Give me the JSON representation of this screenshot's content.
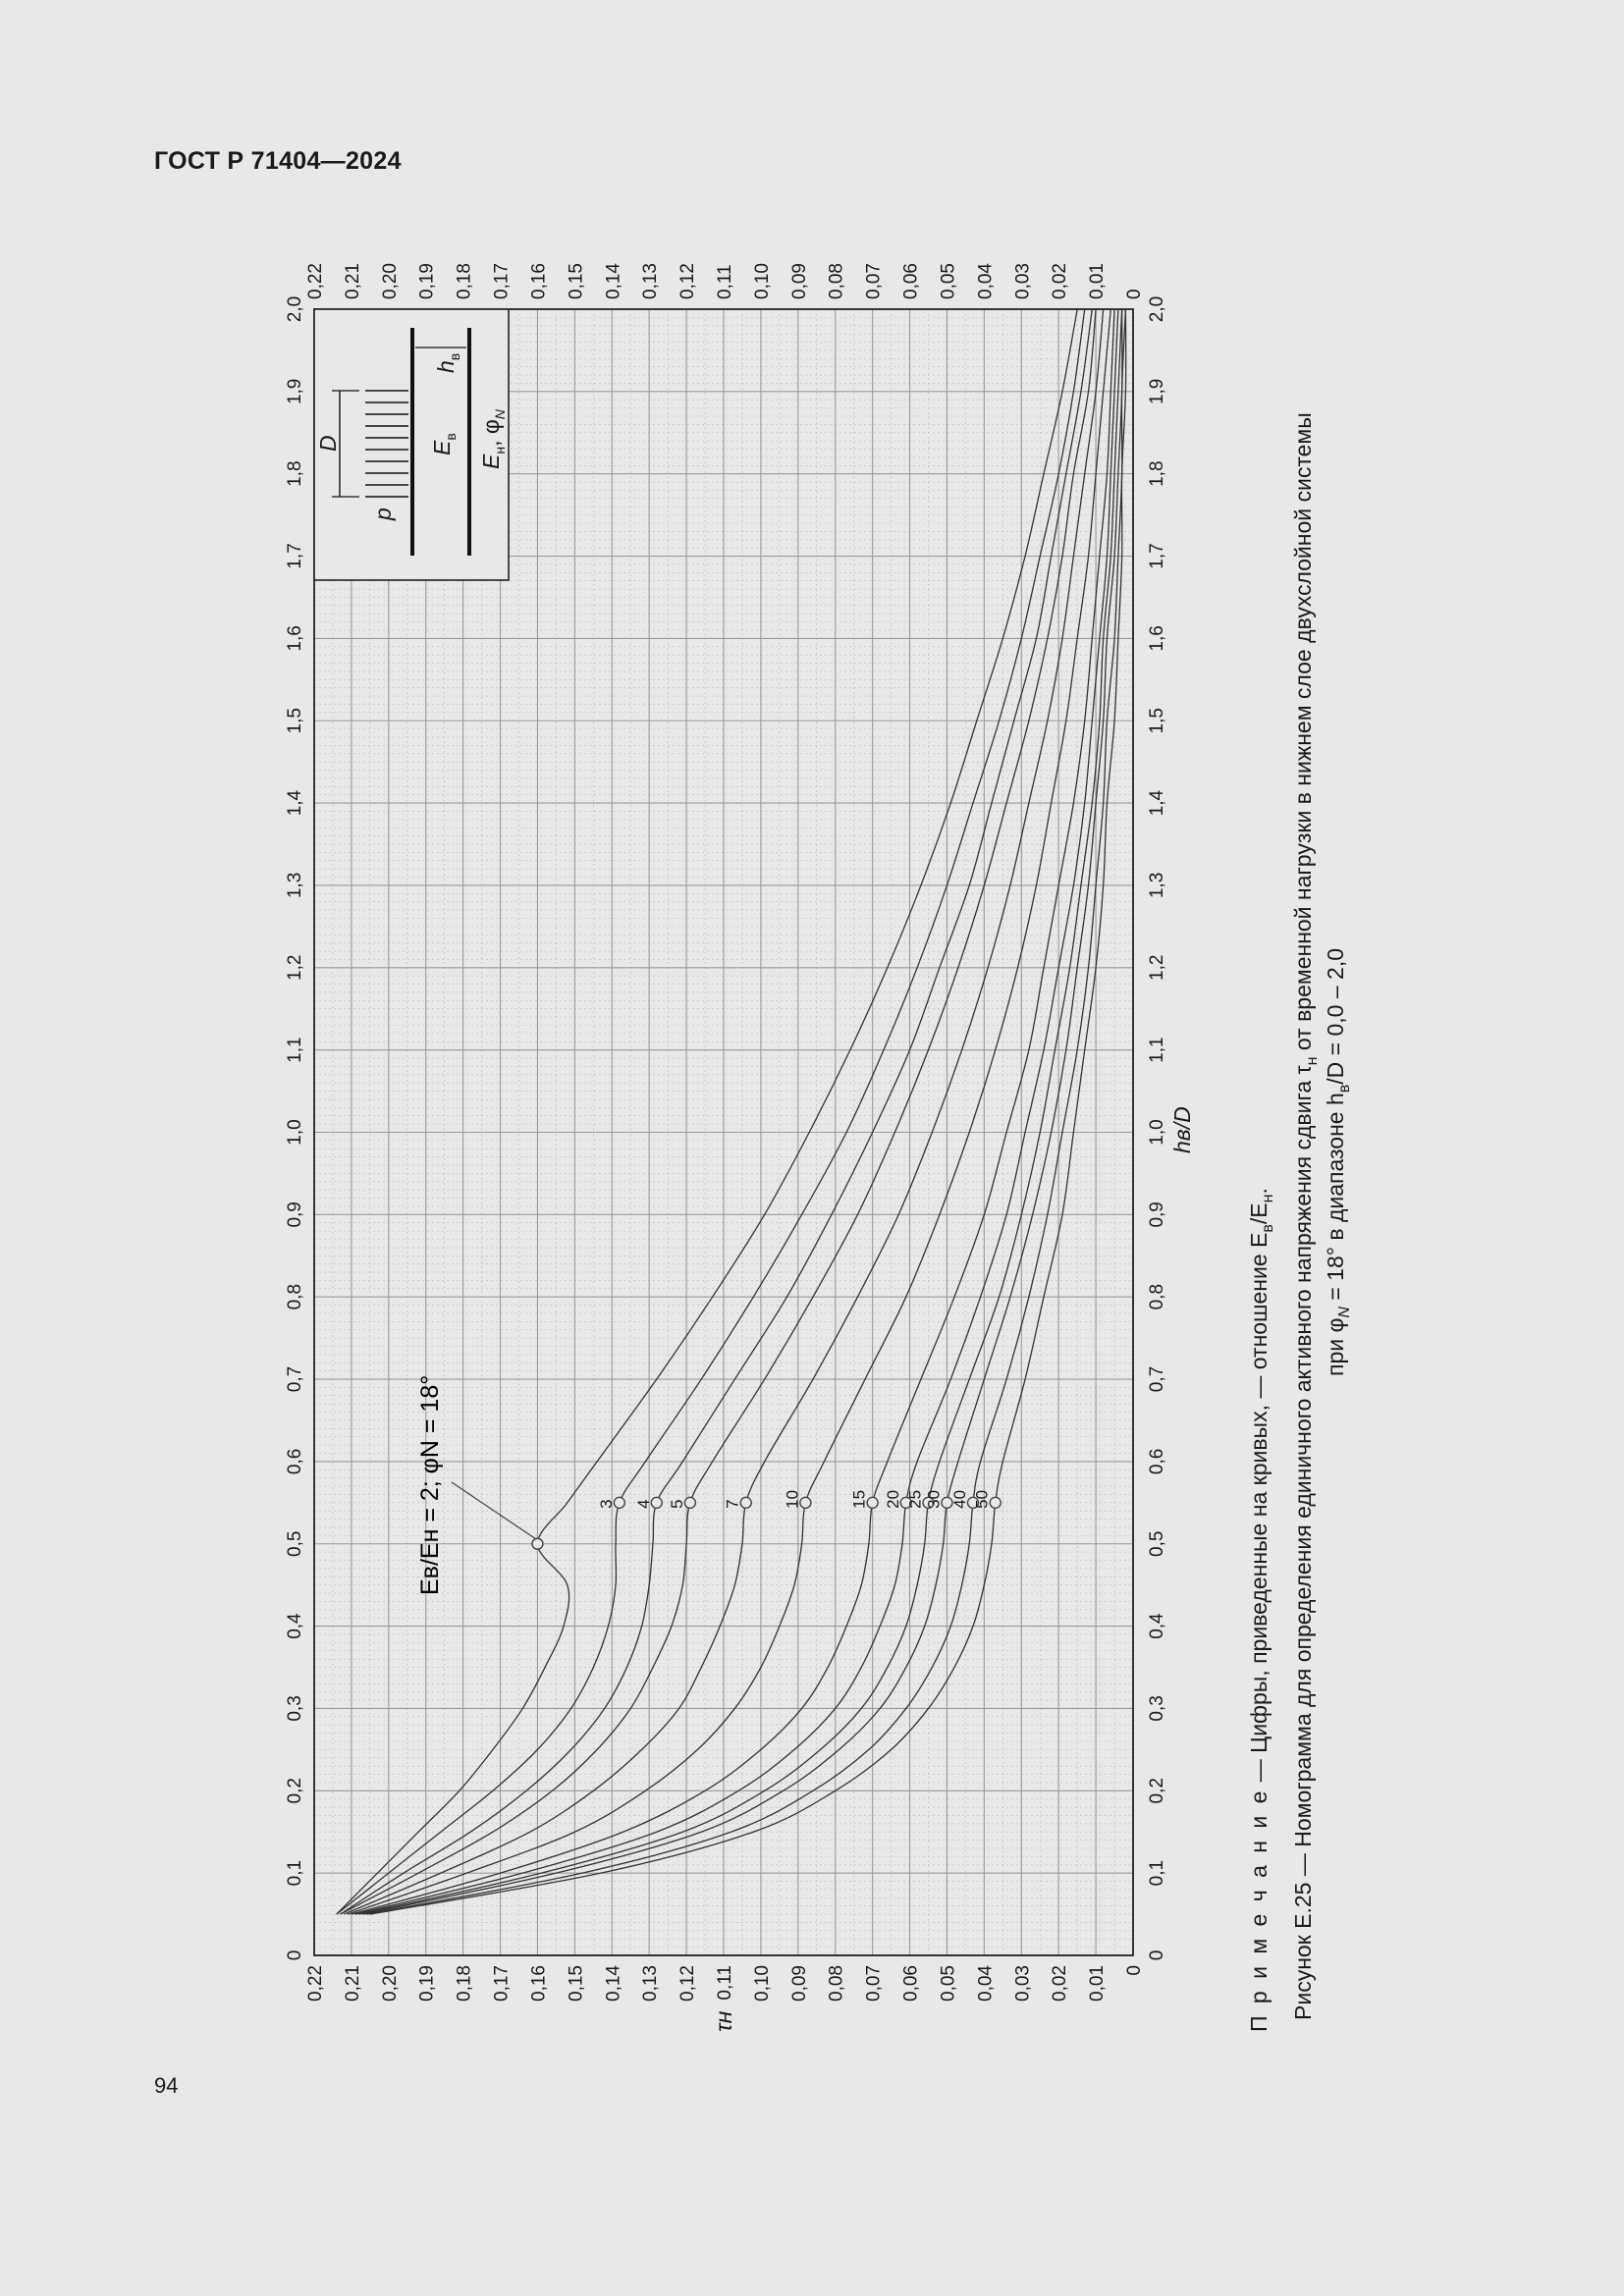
{
  "header": {
    "title": "ГОСТ Р 71404—2024"
  },
  "page_number": "94",
  "note": {
    "label": "П р и м е ч а н и е",
    "text": " — Цифры, приведенные на кривых, — отношение E",
    "sub1": "в",
    "mid": "/E",
    "sub2": "н",
    "end": "."
  },
  "caption": {
    "line1_a": "Рисунок Е.25 — Номограмма для определения единичного активного напряжения сдвига τ",
    "line1_sub": "н",
    "line1_b": " от временной нагрузки в нижнем слое двухслойной системы",
    "line2_a": "при φ",
    "line2_sub": "N",
    "line2_b": " = 18° в диапазоне h",
    "line2_sub2": "в",
    "line2_c": "/D = 0,0 – 2,0"
  },
  "inset": {
    "p": "p",
    "D": "D",
    "h": "h",
    "h_sub": "в",
    "Ev": "E",
    "Ev_sub": "в",
    "En": "E",
    "En_sub": "н",
    "phi": ", φ",
    "phi_sub": "N"
  },
  "chart_data": {
    "type": "line",
    "title": "",
    "xlabel": "hв/D",
    "ylabel": "τн",
    "xlim": [
      0,
      2.0
    ],
    "ylim": [
      0,
      0.22
    ],
    "x_ticks": [
      "0",
      "0,1",
      "0,2",
      "0,3",
      "0,4",
      "0,5",
      "0,6",
      "0,7",
      "0,8",
      "0,9",
      "1,0",
      "1,1",
      "1,2",
      "1,3",
      "1,4",
      "1,5",
      "1,6",
      "1,7",
      "1,8",
      "1,9",
      "2,0"
    ],
    "y_ticks": [
      "0",
      "0,01",
      "0,02",
      "0,03",
      "0,04",
      "0,05",
      "0,06",
      "0,07",
      "0,08",
      "0,09",
      "0,10",
      "0,11",
      "0,12",
      "0,13",
      "0,14",
      "0,15",
      "0,16",
      "0,17",
      "0,18",
      "0,19",
      "0,20",
      "0,21",
      "0,22"
    ],
    "grid": true,
    "annotation": "Eв/Eн = 2; φN = 18°",
    "x": [
      0.05,
      0.1,
      0.15,
      0.2,
      0.25,
      0.3,
      0.35,
      0.4,
      0.45,
      0.5,
      0.55,
      0.6,
      0.7,
      0.8,
      0.9,
      1.0,
      1.1,
      1.2,
      1.3,
      1.4,
      1.5,
      1.6,
      1.7,
      1.8,
      1.9,
      2.0
    ],
    "series": [
      {
        "name": "2",
        "label_x": 0.5,
        "values": [
          0.214,
          0.203,
          0.192,
          0.181,
          0.172,
          0.164,
          0.158,
          0.153,
          0.152,
          0.16,
          0.152,
          0.144,
          0.128,
          0.113,
          0.099,
          0.087,
          0.076,
          0.066,
          0.057,
          0.049,
          0.042,
          0.035,
          0.029,
          0.024,
          0.019,
          0.015
        ]
      },
      {
        "name": "3",
        "label_x": 0.55,
        "values": [
          0.214,
          0.2,
          0.186,
          0.172,
          0.16,
          0.151,
          0.145,
          0.141,
          0.139,
          0.139,
          0.138,
          0.131,
          0.116,
          0.102,
          0.089,
          0.077,
          0.067,
          0.058,
          0.05,
          0.043,
          0.036,
          0.03,
          0.025,
          0.02,
          0.016,
          0.013
        ]
      },
      {
        "name": "4",
        "label_x": 0.55,
        "values": [
          0.213,
          0.196,
          0.178,
          0.163,
          0.151,
          0.142,
          0.136,
          0.132,
          0.13,
          0.129,
          0.128,
          0.121,
          0.107,
          0.093,
          0.081,
          0.07,
          0.06,
          0.052,
          0.044,
          0.038,
          0.032,
          0.026,
          0.022,
          0.018,
          0.014,
          0.011
        ]
      },
      {
        "name": "5",
        "label_x": 0.55,
        "values": [
          0.213,
          0.192,
          0.172,
          0.156,
          0.144,
          0.135,
          0.129,
          0.124,
          0.121,
          0.12,
          0.119,
          0.113,
          0.099,
          0.086,
          0.074,
          0.064,
          0.055,
          0.047,
          0.04,
          0.034,
          0.028,
          0.023,
          0.019,
          0.016,
          0.012,
          0.01
        ]
      },
      {
        "name": "7",
        "label_x": 0.55,
        "values": [
          0.212,
          0.186,
          0.162,
          0.145,
          0.132,
          0.122,
          0.116,
          0.111,
          0.107,
          0.105,
          0.104,
          0.099,
          0.086,
          0.074,
          0.063,
          0.054,
          0.046,
          0.039,
          0.033,
          0.028,
          0.023,
          0.019,
          0.016,
          0.013,
          0.01,
          0.008
        ]
      },
      {
        "name": "10",
        "label_x": 0.55,
        "values": [
          0.211,
          0.179,
          0.15,
          0.131,
          0.117,
          0.107,
          0.1,
          0.095,
          0.091,
          0.089,
          0.088,
          0.083,
          0.072,
          0.061,
          0.052,
          0.044,
          0.037,
          0.031,
          0.026,
          0.022,
          0.018,
          0.015,
          0.012,
          0.01,
          0.008,
          0.006
        ]
      },
      {
        "name": "15",
        "label_x": 0.55,
        "values": [
          0.21,
          0.17,
          0.137,
          0.115,
          0.1,
          0.089,
          0.082,
          0.077,
          0.073,
          0.071,
          0.07,
          0.066,
          0.057,
          0.048,
          0.04,
          0.034,
          0.028,
          0.024,
          0.02,
          0.016,
          0.013,
          0.011,
          0.009,
          0.007,
          0.006,
          0.005
        ]
      },
      {
        "name": "20",
        "label_x": 0.55,
        "values": [
          0.209,
          0.164,
          0.128,
          0.106,
          0.091,
          0.08,
          0.073,
          0.068,
          0.064,
          0.062,
          0.061,
          0.058,
          0.049,
          0.041,
          0.034,
          0.029,
          0.024,
          0.02,
          0.016,
          0.013,
          0.011,
          0.009,
          0.007,
          0.006,
          0.005,
          0.004
        ]
      },
      {
        "name": "25",
        "label_x": 0.55,
        "values": [
          0.208,
          0.159,
          0.121,
          0.099,
          0.084,
          0.073,
          0.066,
          0.061,
          0.058,
          0.056,
          0.055,
          0.052,
          0.044,
          0.036,
          0.03,
          0.025,
          0.021,
          0.017,
          0.014,
          0.011,
          0.009,
          0.008,
          0.006,
          0.005,
          0.004,
          0.003
        ]
      },
      {
        "name": "30",
        "label_x": 0.55,
        "values": [
          0.207,
          0.155,
          0.116,
          0.094,
          0.079,
          0.068,
          0.061,
          0.056,
          0.053,
          0.051,
          0.05,
          0.047,
          0.04,
          0.033,
          0.027,
          0.022,
          0.018,
          0.015,
          0.012,
          0.01,
          0.008,
          0.007,
          0.005,
          0.004,
          0.003,
          0.003
        ]
      },
      {
        "name": "40",
        "label_x": 0.55,
        "values": [
          0.206,
          0.148,
          0.108,
          0.086,
          0.071,
          0.061,
          0.054,
          0.049,
          0.046,
          0.044,
          0.043,
          0.041,
          0.034,
          0.028,
          0.023,
          0.019,
          0.015,
          0.012,
          0.01,
          0.008,
          0.007,
          0.005,
          0.004,
          0.003,
          0.003,
          0.002
        ]
      },
      {
        "name": "50",
        "label_x": 0.55,
        "values": [
          0.205,
          0.143,
          0.102,
          0.08,
          0.065,
          0.055,
          0.048,
          0.043,
          0.04,
          0.038,
          0.037,
          0.035,
          0.029,
          0.024,
          0.019,
          0.016,
          0.013,
          0.01,
          0.008,
          0.007,
          0.005,
          0.004,
          0.003,
          0.003,
          0.002,
          0.002
        ]
      }
    ]
  }
}
